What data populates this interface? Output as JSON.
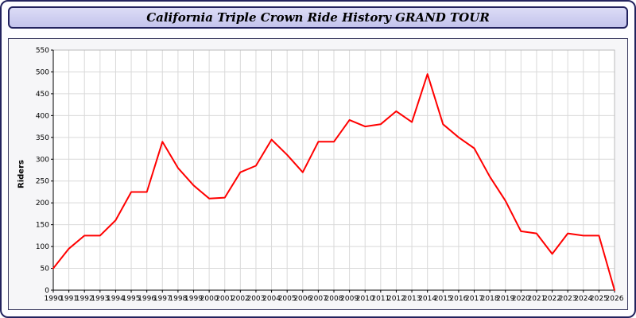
{
  "header": {
    "title": "California Triple Crown Ride History GRAND TOUR"
  },
  "chart_data": {
    "type": "line",
    "title": "California Triple Crown Ride History GRAND TOUR",
    "xlabel": "",
    "ylabel": "Riders",
    "ylim": [
      0,
      550
    ],
    "ytick_step": 50,
    "grid": true,
    "legend_position": "none",
    "grid_color": "#d9d9d9",
    "plot_bg": "#ffffff",
    "axis_color": "#000000",
    "x": [
      1990,
      1991,
      1992,
      1993,
      1994,
      1995,
      1996,
      1997,
      1998,
      1999,
      2000,
      2001,
      2002,
      2003,
      2004,
      2005,
      2006,
      2007,
      2008,
      2009,
      2010,
      2011,
      2012,
      2013,
      2014,
      2015,
      2016,
      2017,
      2018,
      2019,
      2020,
      2021,
      2022,
      2023,
      2024,
      2025,
      2026
    ],
    "series": [
      {
        "name": "Riders",
        "color": "#ff0000",
        "values": [
          50,
          95,
          125,
          125,
          160,
          225,
          225,
          340,
          280,
          240,
          210,
          212,
          270,
          285,
          345,
          310,
          270,
          340,
          340,
          390,
          375,
          380,
          410,
          385,
          495,
          380,
          350,
          325,
          260,
          205,
          135,
          130,
          83,
          130,
          125,
          125,
          0
        ]
      }
    ]
  }
}
